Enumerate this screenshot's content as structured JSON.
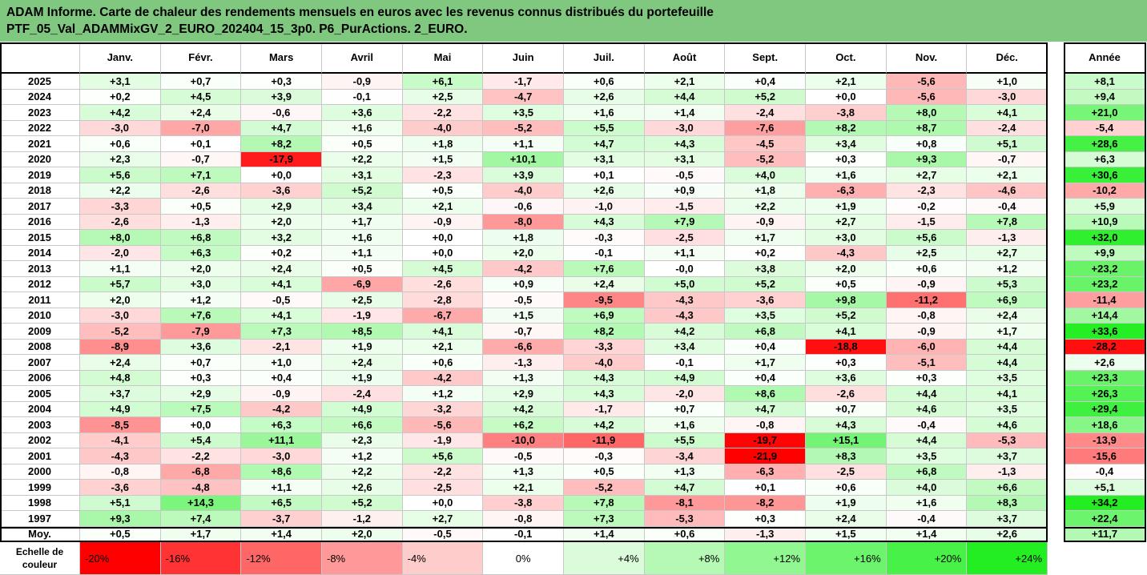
{
  "header": {
    "title_lines": [
      "ADAM Informe. Carte de chaleur des rendements mensuels en euros avec les revenus connus distribués du portefeuille",
      "PTF_05_Val_ADAMMixGV_2_EURO_202404_15_3p0. P6_PurActions. 2_EURO."
    ]
  },
  "table": {
    "columns": [
      "Janv.",
      "Févr.",
      "Mars",
      "Avril",
      "Mai",
      "Juin",
      "Juil.",
      "Août",
      "Sept.",
      "Oct.",
      "Nov.",
      "Déc.",
      "Année"
    ],
    "rows": [
      [
        "2025",
        "+3,1",
        "+0,7",
        "+0,3",
        "-0,9",
        "+6,1",
        "-1,7",
        "+0,6",
        "+2,1",
        "+0,4",
        "+2,1",
        "-5,6",
        "+1,0",
        "+8,1"
      ],
      [
        "2024",
        "+0,2",
        "+4,5",
        "+3,9",
        "-0,1",
        "+2,5",
        "-4,7",
        "+2,6",
        "+4,4",
        "+5,2",
        "+0,0",
        "-5,6",
        "-3,0",
        "+9,4"
      ],
      [
        "2023",
        "+4,2",
        "+2,4",
        "-0,6",
        "+3,6",
        "-2,2",
        "+3,5",
        "+1,6",
        "+1,4",
        "-2,4",
        "-3,8",
        "+8,0",
        "+4,1",
        "+21,0"
      ],
      [
        "2022",
        "-3,0",
        "-7,0",
        "+4,7",
        "+1,6",
        "-4,0",
        "-5,2",
        "+5,5",
        "-3,0",
        "-7,6",
        "+8,2",
        "+8,7",
        "-2,4",
        "-5,4"
      ],
      [
        "2021",
        "+0,6",
        "+0,1",
        "+8,2",
        "+0,5",
        "+1,8",
        "+1,1",
        "+4,7",
        "+4,3",
        "-4,5",
        "+3,4",
        "+0,8",
        "+5,1",
        "+28,6"
      ],
      [
        "2020",
        "+2,3",
        "-0,7",
        "-17,9",
        "+2,2",
        "+1,5",
        "+10,1",
        "+3,1",
        "+3,1",
        "-5,2",
        "+0,3",
        "+9,3",
        "-0,7",
        "+6,3"
      ],
      [
        "2019",
        "+5,6",
        "+7,1",
        "+0,0",
        "+3,1",
        "-2,3",
        "+3,9",
        "+0,1",
        "-0,5",
        "+4,0",
        "+1,6",
        "+2,7",
        "+2,1",
        "+30,6"
      ],
      [
        "2018",
        "+2,2",
        "-2,6",
        "-3,6",
        "+5,2",
        "+0,5",
        "-4,0",
        "+2,6",
        "+0,9",
        "+1,8",
        "-6,3",
        "-2,3",
        "-4,6",
        "-10,2"
      ],
      [
        "2017",
        "-3,3",
        "+0,5",
        "+2,9",
        "+3,4",
        "+2,1",
        "-0,6",
        "-1,0",
        "-1,5",
        "+2,2",
        "+1,9",
        "-0,2",
        "-0,4",
        "+5,9"
      ],
      [
        "2016",
        "-2,6",
        "-1,3",
        "+2,0",
        "+1,7",
        "-0,9",
        "-8,0",
        "+4,3",
        "+7,9",
        "-0,9",
        "+2,7",
        "-1,5",
        "+7,8",
        "+10,9"
      ],
      [
        "2015",
        "+8,0",
        "+6,8",
        "+3,2",
        "+1,6",
        "+0,0",
        "+1,8",
        "-0,3",
        "-2,5",
        "+1,7",
        "+3,0",
        "+5,6",
        "-1,3",
        "+32,0"
      ],
      [
        "2014",
        "-2,0",
        "+6,3",
        "+0,2",
        "+1,1",
        "+0,0",
        "+2,0",
        "-0,1",
        "+1,1",
        "+0,2",
        "-4,3",
        "+2,5",
        "+2,7",
        "+9,9"
      ],
      [
        "2013",
        "+1,1",
        "+2,0",
        "+2,4",
        "+0,5",
        "+4,5",
        "-4,2",
        "+7,6",
        "-0,0",
        "+3,8",
        "+2,0",
        "+0,6",
        "+1,2",
        "+23,2"
      ],
      [
        "2012",
        "+5,7",
        "+3,0",
        "+4,1",
        "-6,9",
        "-2,6",
        "+0,9",
        "+2,4",
        "+5,0",
        "+5,2",
        "+0,5",
        "-0,9",
        "+5,3",
        "+23,2"
      ],
      [
        "2011",
        "+2,0",
        "+1,2",
        "-0,5",
        "+2,5",
        "-2,8",
        "-0,5",
        "-9,5",
        "-4,3",
        "-3,6",
        "+9,8",
        "-11,2",
        "+6,9",
        "-11,4"
      ],
      [
        "2010",
        "-3,0",
        "+7,6",
        "+4,1",
        "-1,9",
        "-6,7",
        "+1,5",
        "+6,9",
        "-4,3",
        "+3,5",
        "+5,2",
        "-0,8",
        "+2,4",
        "+14,4"
      ],
      [
        "2009",
        "-5,2",
        "-7,9",
        "+7,3",
        "+8,5",
        "+4,1",
        "-0,7",
        "+8,2",
        "+4,2",
        "+6,8",
        "+4,1",
        "-0,9",
        "+1,7",
        "+33,6"
      ],
      [
        "2008",
        "-8,9",
        "+3,6",
        "-2,1",
        "+1,9",
        "+2,1",
        "-6,6",
        "-3,3",
        "+3,4",
        "+0,4",
        "-18,8",
        "-6,0",
        "+4,4",
        "-28,2"
      ],
      [
        "2007",
        "+2,4",
        "+0,7",
        "+1,0",
        "+2,4",
        "+0,6",
        "-1,3",
        "-4,0",
        "-0,1",
        "+1,7",
        "+0,3",
        "-5,1",
        "+4,4",
        "+2,6"
      ],
      [
        "2006",
        "+4,8",
        "+0,3",
        "+0,4",
        "+1,9",
        "-4,2",
        "+1,3",
        "+4,3",
        "+4,9",
        "+0,4",
        "+3,6",
        "+0,3",
        "+3,5",
        "+23,3"
      ],
      [
        "2005",
        "+3,7",
        "+2,9",
        "-0,9",
        "-2,4",
        "+1,2",
        "+2,9",
        "+4,3",
        "-2,0",
        "+8,6",
        "-2,6",
        "+4,4",
        "+4,1",
        "+26,3"
      ],
      [
        "2004",
        "+4,9",
        "+7,5",
        "-4,2",
        "+4,9",
        "-3,2",
        "+4,2",
        "-1,7",
        "+0,7",
        "+4,7",
        "+0,7",
        "+4,6",
        "+3,5",
        "+29,4"
      ],
      [
        "2003",
        "-8,5",
        "+0,0",
        "+6,3",
        "+6,6",
        "-5,6",
        "+6,2",
        "+4,2",
        "+1,6",
        "-0,8",
        "+4,3",
        "-0,4",
        "+4,6",
        "+18,6"
      ],
      [
        "2002",
        "-4,1",
        "+5,4",
        "+11,1",
        "+2,3",
        "-1,9",
        "-10,0",
        "-11,9",
        "+5,5",
        "-19,7",
        "+15,1",
        "+4,4",
        "-5,3",
        "-13,9"
      ],
      [
        "2001",
        "-4,3",
        "-2,2",
        "-3,0",
        "+1,2",
        "+5,6",
        "-0,5",
        "-0,3",
        "-3,4",
        "-21,9",
        "+8,3",
        "+3,5",
        "+3,7",
        "-15,6"
      ],
      [
        "2000",
        "-0,8",
        "-6,8",
        "+8,6",
        "+2,2",
        "-2,2",
        "+1,3",
        "+0,5",
        "+1,3",
        "-6,3",
        "-2,5",
        "+6,8",
        "-1,3",
        "-0,4"
      ],
      [
        "1999",
        "-3,6",
        "-4,8",
        "+1,1",
        "+2,6",
        "-2,5",
        "+2,1",
        "-5,2",
        "+4,7",
        "+0,1",
        "+0,6",
        "+4,0",
        "+6,6",
        "+5,1"
      ],
      [
        "1998",
        "+5,1",
        "+14,3",
        "+6,5",
        "+5,2",
        "+0,0",
        "-3,8",
        "+7,8",
        "-8,1",
        "-8,2",
        "+1,9",
        "+1,6",
        "+8,3",
        "+34,2"
      ],
      [
        "1997",
        "+9,3",
        "+7,4",
        "-3,7",
        "-1,2",
        "+2,7",
        "-0,8",
        "+7,3",
        "-5,3",
        "+0,3",
        "+2,4",
        "-0,4",
        "+3,7",
        "+22,4"
      ]
    ],
    "average": [
      "Moy.",
      "+0,5",
      "+1,7",
      "+1,4",
      "+2,0",
      "-0,5",
      "-0,1",
      "+1,4",
      "+0,6",
      "-1,3",
      "+1,5",
      "+1,4",
      "+2,6",
      "+11,7"
    ]
  },
  "scale": {
    "label": "Echelle de couleur",
    "steps": [
      "-20%",
      "-16%",
      "-12%",
      "-8%",
      "-4%",
      "0%",
      "+4%",
      "+8%",
      "+12%",
      "+16%",
      "+20%",
      "+24%"
    ]
  }
}
